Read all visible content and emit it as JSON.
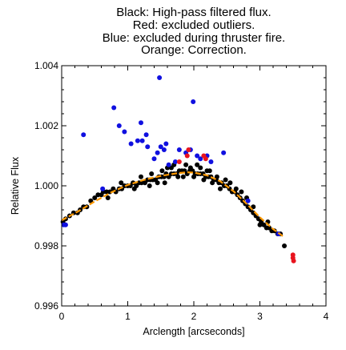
{
  "chart_data": {
    "type": "scatter",
    "title_lines": [
      "Black: High-pass filtered flux.",
      "Red: excluded outliers.",
      "Blue: excluded during thruster fire.",
      "Orange: Correction."
    ],
    "xlabel": "Arclength [arcseconds]",
    "ylabel": "Relative Flux",
    "xlim": [
      0,
      4
    ],
    "ylim": [
      0.996,
      1.004
    ],
    "x_ticks": [
      0,
      1,
      2,
      3,
      4
    ],
    "x_tick_labels": [
      "0",
      "1",
      "2",
      "3",
      "4"
    ],
    "y_ticks": [
      0.996,
      0.998,
      1.0,
      1.002,
      1.004
    ],
    "y_tick_labels": [
      "0.996",
      "0.998",
      "1.000",
      "1.002",
      "1.004"
    ],
    "grid": false,
    "colors": {
      "black": "#000000",
      "red": "#e8141e",
      "blue": "#1010e0",
      "orange": "#ff9900"
    },
    "series": [
      {
        "points": [
          [
            0.02,
            0.9988
          ],
          [
            0.06,
            0.9989
          ],
          [
            0.12,
            0.999
          ],
          [
            0.18,
            0.9991
          ],
          [
            0.24,
            0.9991
          ],
          [
            0.28,
            0.9992
          ],
          [
            0.33,
            0.9993
          ],
          [
            0.38,
            0.9993
          ],
          [
            0.44,
            0.9995
          ],
          [
            0.5,
            0.9996
          ],
          [
            0.55,
            0.9997
          ],
          [
            0.6,
            0.9997
          ],
          [
            0.63,
            0.9998
          ],
          [
            0.68,
            0.9998
          ],
          [
            0.73,
            0.9998
          ],
          [
            0.78,
            0.9999
          ],
          [
            0.82,
            0.9998
          ],
          [
            0.87,
            0.9999
          ],
          [
            0.91,
            0.9999
          ],
          [
            0.95,
            1.0
          ],
          [
            1.0,
            1.0
          ],
          [
            1.04,
            1.0
          ],
          [
            1.08,
            1.0001
          ],
          [
            1.13,
            1.0
          ],
          [
            1.17,
            1.0001
          ],
          [
            1.21,
            1.0001
          ],
          [
            1.26,
            1.0001
          ],
          [
            1.3,
            1.0002
          ],
          [
            1.34,
            1.0002
          ],
          [
            1.38,
            1.0002
          ],
          [
            1.42,
            1.0002
          ],
          [
            1.47,
            1.0003
          ],
          [
            1.51,
            1.0003
          ],
          [
            1.55,
            1.0003
          ],
          [
            1.58,
            1.0004
          ],
          [
            1.62,
            1.0003
          ],
          [
            1.66,
            1.0004
          ],
          [
            1.7,
            1.0004
          ],
          [
            1.74,
            1.0004
          ],
          [
            1.78,
            1.0005
          ],
          [
            1.82,
            1.0005
          ],
          [
            1.86,
            1.0005
          ],
          [
            1.9,
            1.0004
          ],
          [
            1.94,
            1.0005
          ],
          [
            1.98,
            1.0005
          ],
          [
            2.02,
            1.0004
          ],
          [
            2.06,
            1.0004
          ],
          [
            2.1,
            1.0004
          ],
          [
            2.14,
            1.0004
          ],
          [
            2.18,
            1.0003
          ],
          [
            2.22,
            1.0003
          ],
          [
            2.26,
            1.0003
          ],
          [
            2.3,
            1.0002
          ],
          [
            2.34,
            1.0002
          ],
          [
            2.38,
            1.0001
          ],
          [
            2.42,
            1.0001
          ],
          [
            2.46,
            1.0
          ],
          [
            2.5,
            1.0
          ],
          [
            2.54,
            0.9999
          ],
          [
            2.58,
            0.9998
          ],
          [
            2.62,
            0.9998
          ],
          [
            2.66,
            0.9997
          ],
          [
            2.7,
            0.9996
          ],
          [
            2.74,
            0.9995
          ],
          [
            2.78,
            0.9994
          ],
          [
            2.82,
            0.9993
          ],
          [
            2.86,
            0.9992
          ],
          [
            2.9,
            0.9991
          ],
          [
            2.94,
            0.999
          ],
          [
            2.98,
            0.9989
          ],
          [
            3.02,
            0.9988
          ],
          [
            3.06,
            0.9987
          ],
          [
            3.1,
            0.9986
          ],
          [
            3.14,
            0.9986
          ],
          [
            3.18,
            0.9985
          ],
          [
            3.22,
            0.9985
          ],
          [
            3.27,
            0.9984
          ],
          [
            3.31,
            0.9984
          ],
          [
            3.37,
            0.998
          ],
          [
            1.2,
            1.0003
          ],
          [
            1.45,
            1.0001
          ],
          [
            1.6,
            1.0006
          ],
          [
            1.7,
            1.0007
          ],
          [
            1.88,
            1.0007
          ],
          [
            1.95,
            1.0006
          ],
          [
            2.05,
            1.0007
          ],
          [
            2.15,
            1.0002
          ],
          [
            2.2,
            1.0005
          ],
          [
            2.35,
            1.0003
          ],
          [
            2.4,
            0.9999
          ],
          [
            2.48,
            1.0002
          ],
          [
            2.55,
            1.0001
          ],
          [
            2.64,
            0.9999
          ],
          [
            2.72,
            0.9998
          ],
          [
            2.8,
            0.9996
          ],
          [
            0.7,
            0.9996
          ],
          [
            0.9,
            1.0001
          ],
          [
            1.1,
            0.9999
          ],
          [
            1.33,
            1.0
          ],
          [
            1.56,
            1.0001
          ],
          [
            1.76,
            1.0003
          ],
          [
            1.84,
            1.0003
          ],
          [
            2.0,
            1.0003
          ],
          [
            2.28,
            1.0001
          ],
          [
            2.9,
            0.9993
          ],
          [
            3.0,
            0.9987
          ],
          [
            3.12,
            0.9988
          ],
          [
            1.36,
            1.0004
          ],
          [
            1.52,
            1.0005
          ],
          [
            1.66,
            1.0006
          ],
          [
            2.1,
            1.0006
          ],
          [
            2.24,
            1.0005
          ]
        ],
        "color_key": "black"
      },
      {
        "points": [
          [
            0.03,
            0.9987
          ],
          [
            0.06,
            0.9987
          ],
          [
            0.33,
            1.0017
          ],
          [
            0.62,
            0.9999
          ],
          [
            0.79,
            1.0026
          ],
          [
            0.87,
            1.002
          ],
          [
            0.95,
            1.0018
          ],
          [
            1.05,
            1.0014
          ],
          [
            1.15,
            1.0015
          ],
          [
            1.2,
            1.0021
          ],
          [
            1.22,
            1.0015
          ],
          [
            1.28,
            1.0017
          ],
          [
            1.3,
            1.0013
          ],
          [
            1.4,
            1.0009
          ],
          [
            1.45,
            1.0011
          ],
          [
            1.48,
            1.0036
          ],
          [
            1.5,
            1.0013
          ],
          [
            1.55,
            1.0012
          ],
          [
            1.58,
            1.0014
          ],
          [
            1.62,
            1.0007
          ],
          [
            1.72,
            1.0008
          ],
          [
            1.78,
            1.0012
          ],
          [
            1.88,
            1.0011
          ],
          [
            1.95,
            1.0012
          ],
          [
            1.99,
            1.0028
          ],
          [
            2.05,
            1.001
          ],
          [
            2.1,
            1.0009
          ],
          [
            2.2,
            1.001
          ],
          [
            2.26,
            1.0008
          ],
          [
            2.45,
            1.0011
          ],
          [
            2.82,
            0.9995
          ],
          [
            3.28,
            0.9984
          ]
        ],
        "color_key": "blue"
      },
      {
        "points": [
          [
            1.78,
            1.0008
          ],
          [
            1.9,
            1.001
          ],
          [
            1.92,
            1.0012
          ],
          [
            2.15,
            1.001
          ],
          [
            2.18,
            1.0009
          ],
          [
            3.5,
            0.9976
          ],
          [
            3.5,
            0.9977
          ],
          [
            3.51,
            0.9975
          ]
        ],
        "color_key": "red"
      }
    ],
    "correction_curve": [
      [
        0.0,
        0.99885
      ],
      [
        0.25,
        0.99915
      ],
      [
        0.5,
        0.99948
      ],
      [
        0.75,
        0.99978
      ],
      [
        1.0,
        1.00003
      ],
      [
        1.25,
        1.0002
      ],
      [
        1.5,
        1.00033
      ],
      [
        1.75,
        1.00042
      ],
      [
        1.9,
        1.00045
      ],
      [
        2.0,
        1.00044
      ],
      [
        2.2,
        1.00035
      ],
      [
        2.4,
        1.00015
      ],
      [
        2.6,
        0.99982
      ],
      [
        2.8,
        0.9994
      ],
      [
        3.0,
        0.99895
      ],
      [
        3.2,
        0.99856
      ],
      [
        3.35,
        0.99832
      ]
    ]
  }
}
